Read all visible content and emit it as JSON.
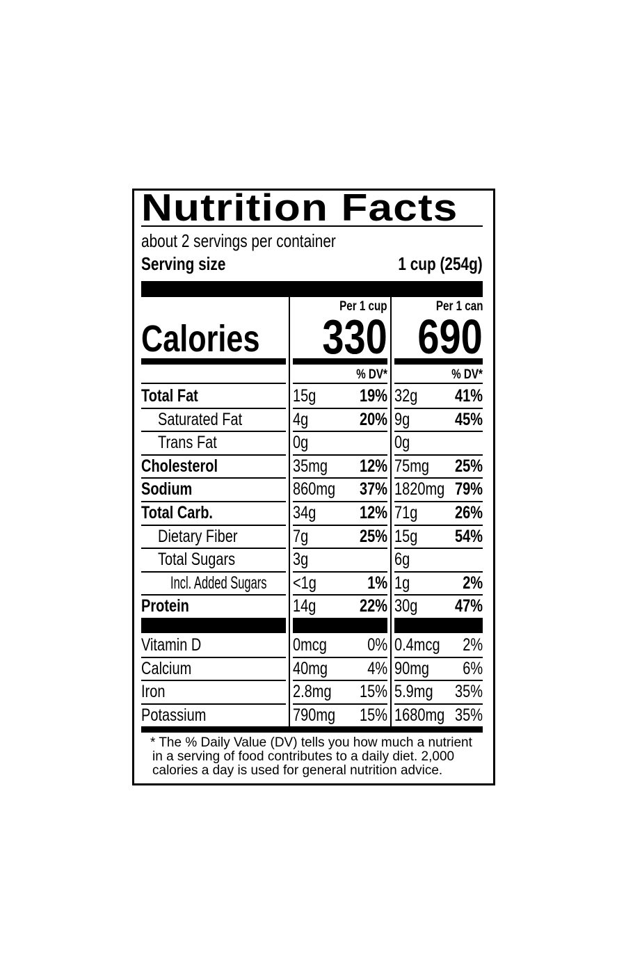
{
  "label": {
    "title": "Nutrition Facts",
    "servings": "about 2 servings per container",
    "serving_size_label": "Serving size",
    "serving_size_value": "1 cup (254g)",
    "calories_label": "Calories",
    "columns": [
      {
        "header": "Per 1 cup",
        "calories": "330",
        "dv_header": "% DV*"
      },
      {
        "header": "Per 1 can",
        "calories": "690",
        "dv_header": "% DV*"
      }
    ],
    "nutrients": [
      {
        "name": "Total Fat",
        "bold": true,
        "indent": 0,
        "v1": "15g",
        "d1": "19%",
        "v2": "32g",
        "d2": "41%"
      },
      {
        "name": "Saturated Fat",
        "bold": false,
        "indent": 1,
        "v1": "4g",
        "d1": "20%",
        "v2": "9g",
        "d2": "45%"
      },
      {
        "name": "Trans Fat",
        "bold": false,
        "indent": 1,
        "v1": "0g",
        "d1": "",
        "v2": "0g",
        "d2": ""
      },
      {
        "name": "Cholesterol",
        "bold": true,
        "indent": 0,
        "v1": "35mg",
        "d1": "12%",
        "v2": "75mg",
        "d2": "25%"
      },
      {
        "name": "Sodium",
        "bold": true,
        "indent": 0,
        "v1": "860mg",
        "d1": "37%",
        "v2": "1820mg",
        "d2": "79%"
      },
      {
        "name": "Total Carb.",
        "bold": true,
        "indent": 0,
        "v1": "34g",
        "d1": "12%",
        "v2": "71g",
        "d2": "26%"
      },
      {
        "name": "Dietary Fiber",
        "bold": false,
        "indent": 1,
        "v1": "7g",
        "d1": "25%",
        "v2": "15g",
        "d2": "54%"
      },
      {
        "name": "Total Sugars",
        "bold": false,
        "indent": 1,
        "v1": "3g",
        "d1": "",
        "v2": "6g",
        "d2": ""
      },
      {
        "name": "Incl. Added Sugars",
        "bold": false,
        "indent": 2,
        "v1": "<1g",
        "d1": "1%",
        "v2": "1g",
        "d2": "2%"
      },
      {
        "name": "Protein",
        "bold": true,
        "indent": 0,
        "v1": "14g",
        "d1": "22%",
        "v2": "30g",
        "d2": "47%"
      }
    ],
    "vitamins": [
      {
        "name": "Vitamin D",
        "v1": "0mcg",
        "d1": "0%",
        "v2": "0.4mcg",
        "d2": "2%"
      },
      {
        "name": "Calcium",
        "v1": "40mg",
        "d1": "4%",
        "v2": "90mg",
        "d2": "6%"
      },
      {
        "name": "Iron",
        "v1": "2.8mg",
        "d1": "15%",
        "v2": "5.9mg",
        "d2": "35%"
      },
      {
        "name": "Potassium",
        "v1": "790mg",
        "d1": "15%",
        "v2": "1680mg",
        "d2": "35%"
      }
    ],
    "footnote_1": "* The % Daily Value (DV) tells you how much a nutrient",
    "footnote_2": "in a serving of food contributes to a daily diet. 2,000",
    "footnote_3": "calories a day is used for general nutrition advice."
  }
}
